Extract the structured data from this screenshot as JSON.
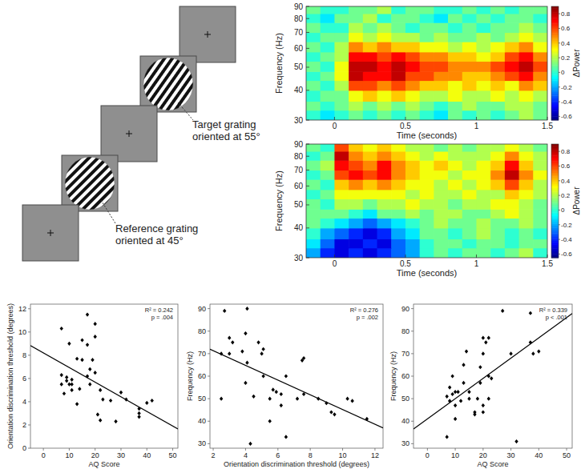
{
  "stimulus": {
    "target_label": "Target grating oriented at 55°",
    "reference_label": "Reference grating oriented at 45°"
  },
  "chart_data": [
    {
      "type": "heatmap",
      "xlabel": "Time (seconds)",
      "ylabel": "Frequency (Hz)",
      "log": "y",
      "xlim": [
        -0.2,
        1.5
      ],
      "xticks": [
        0,
        0.5,
        1,
        1.5
      ],
      "ylim": [
        30,
        90
      ],
      "yticks": [
        30,
        40,
        50,
        60,
        70,
        80,
        90
      ],
      "x_edges": [
        -0.2,
        -0.1,
        0,
        0.1,
        0.2,
        0.3,
        0.4,
        0.5,
        0.6,
        0.7,
        0.8,
        0.9,
        1,
        1.1,
        1.2,
        1.3,
        1.4,
        1.5
      ],
      "y_edges": [
        30,
        33,
        36,
        40,
        44,
        48,
        53,
        58,
        64,
        70,
        77,
        84,
        90
      ],
      "cells": [
        [
          0.0,
          -0.1,
          0.0,
          0.1,
          0.0,
          0.1,
          0.0,
          0.1,
          0.0,
          -0.1,
          0.1,
          0.0,
          0.1,
          0.0,
          0.1,
          0.2,
          0.1
        ],
        [
          0.1,
          0.0,
          0.1,
          0.2,
          0.1,
          0.2,
          0.1,
          0.2,
          0.1,
          0.0,
          0.1,
          0.2,
          0.1,
          0.1,
          0.2,
          0.2,
          0.1
        ],
        [
          0.0,
          0.1,
          0.1,
          0.3,
          0.4,
          0.3,
          0.4,
          0.3,
          0.2,
          0.2,
          0.3,
          0.2,
          0.2,
          0.3,
          0.2,
          0.3,
          0.2
        ],
        [
          0.1,
          0.0,
          0.2,
          0.6,
          0.6,
          0.5,
          0.6,
          0.5,
          0.4,
          0.4,
          0.3,
          0.4,
          0.3,
          0.4,
          0.3,
          0.5,
          0.4
        ],
        [
          0.0,
          0.1,
          0.3,
          0.8,
          0.7,
          0.7,
          0.8,
          0.6,
          0.6,
          0.5,
          0.5,
          0.4,
          0.4,
          0.5,
          0.6,
          0.7,
          0.5
        ],
        [
          0.1,
          0.0,
          0.3,
          0.8,
          0.8,
          0.7,
          0.8,
          0.7,
          0.6,
          0.6,
          0.5,
          0.5,
          0.5,
          0.6,
          0.7,
          0.8,
          0.6
        ],
        [
          0.0,
          0.1,
          0.2,
          0.7,
          0.7,
          0.6,
          0.7,
          0.6,
          0.5,
          0.5,
          0.4,
          0.4,
          0.3,
          0.4,
          0.6,
          0.7,
          0.5
        ],
        [
          0.1,
          0.0,
          0.2,
          0.5,
          0.4,
          0.5,
          0.4,
          0.4,
          0.3,
          0.3,
          0.2,
          0.3,
          0.2,
          0.3,
          0.4,
          0.5,
          0.3
        ],
        [
          0.0,
          0.1,
          0.1,
          0.3,
          0.2,
          0.3,
          0.2,
          0.2,
          0.1,
          0.2,
          0.1,
          0.1,
          0.2,
          0.1,
          0.2,
          0.3,
          0.2
        ],
        [
          0.1,
          0.0,
          0.0,
          0.2,
          0.1,
          0.2,
          0.1,
          0.0,
          0.1,
          0.1,
          0.0,
          0.1,
          0.0,
          0.1,
          0.1,
          0.2,
          0.1
        ],
        [
          0.0,
          -0.1,
          0.1,
          0.1,
          0.2,
          0.0,
          0.1,
          0.1,
          0.0,
          -0.1,
          0.1,
          0.0,
          0.1,
          0.0,
          0.1,
          0.1,
          0.0
        ],
        [
          0.1,
          0.0,
          0.0,
          0.1,
          0.1,
          0.2,
          0.0,
          0.1,
          0.1,
          0.0,
          0.0,
          0.1,
          0.0,
          0.1,
          0.0,
          0.1,
          0.1
        ]
      ],
      "colorbar": {
        "label": "ΔPower",
        "range": [
          -0.65,
          0.9
        ],
        "ticks": [
          -0.6,
          -0.4,
          -0.2,
          0,
          0.2,
          0.4,
          0.6,
          0.8
        ]
      }
    },
    {
      "type": "heatmap",
      "xlabel": "Time (seconds)",
      "ylabel": "Frequency (Hz)",
      "log": "y",
      "xlim": [
        -0.2,
        1.5
      ],
      "xticks": [
        0,
        0.5,
        1,
        1.5
      ],
      "ylim": [
        30,
        90
      ],
      "yticks": [
        30,
        40,
        50,
        60,
        70,
        80,
        90
      ],
      "x_edges": [
        -0.2,
        -0.1,
        0,
        0.1,
        0.2,
        0.3,
        0.4,
        0.5,
        0.6,
        0.7,
        0.8,
        0.9,
        1,
        1.1,
        1.2,
        1.3,
        1.4,
        1.5
      ],
      "y_edges": [
        30,
        33,
        36,
        40,
        44,
        48,
        53,
        58,
        64,
        70,
        77,
        84,
        90
      ],
      "cells": [
        [
          -0.2,
          -0.4,
          -0.5,
          -0.4,
          -0.5,
          -0.4,
          -0.3,
          -0.2,
          0.0,
          0.1,
          0.0,
          0.1,
          0.1,
          0.0,
          0.1,
          0.2,
          0.0
        ],
        [
          -0.1,
          -0.3,
          -0.5,
          -0.5,
          -0.4,
          -0.5,
          -0.3,
          -0.2,
          0.0,
          0.1,
          0.1,
          0.0,
          0.1,
          0.1,
          0.0,
          0.1,
          0.1
        ],
        [
          0.0,
          -0.2,
          -0.3,
          -0.4,
          -0.5,
          -0.4,
          -0.2,
          -0.1,
          0.1,
          0.1,
          0.0,
          0.1,
          0.2,
          0.1,
          0.0,
          0.1,
          0.0
        ],
        [
          0.1,
          0.0,
          -0.1,
          -0.2,
          -0.3,
          -0.2,
          -0.1,
          0.0,
          0.1,
          0.2,
          0.1,
          0.1,
          0.2,
          0.1,
          0.1,
          0.2,
          0.1
        ],
        [
          0.1,
          0.1,
          0.1,
          0.0,
          -0.1,
          0.1,
          0.1,
          0.2,
          0.1,
          0.2,
          0.2,
          0.1,
          0.1,
          0.2,
          0.3,
          0.2,
          0.1
        ],
        [
          0.1,
          0.0,
          0.2,
          0.2,
          0.1,
          0.2,
          0.2,
          0.3,
          0.2,
          0.2,
          0.1,
          0.2,
          0.2,
          0.3,
          0.3,
          0.2,
          0.1
        ],
        [
          0.0,
          0.1,
          0.3,
          0.3,
          0.3,
          0.3,
          0.3,
          0.2,
          0.3,
          0.2,
          0.2,
          0.3,
          0.2,
          0.2,
          0.4,
          0.3,
          0.2
        ],
        [
          0.1,
          0.0,
          0.4,
          0.5,
          0.4,
          0.5,
          0.4,
          0.3,
          0.3,
          0.2,
          0.3,
          0.2,
          0.3,
          0.4,
          0.6,
          0.4,
          0.2
        ],
        [
          0.0,
          0.1,
          0.6,
          0.7,
          0.6,
          0.7,
          0.5,
          0.4,
          0.3,
          0.3,
          0.2,
          0.3,
          0.3,
          0.5,
          0.8,
          0.5,
          0.3
        ],
        [
          0.1,
          0.2,
          0.7,
          0.6,
          0.5,
          0.7,
          0.5,
          0.4,
          0.3,
          0.4,
          0.3,
          0.2,
          0.3,
          0.4,
          0.7,
          0.4,
          0.2
        ],
        [
          0.0,
          0.1,
          0.8,
          0.5,
          0.4,
          0.5,
          0.4,
          0.3,
          0.2,
          0.3,
          0.2,
          0.2,
          0.2,
          0.3,
          0.5,
          0.3,
          0.2
        ],
        [
          0.1,
          0.0,
          0.6,
          0.4,
          0.3,
          0.4,
          0.3,
          0.2,
          0.2,
          0.1,
          0.2,
          0.1,
          0.2,
          0.2,
          0.3,
          0.2,
          0.1
        ]
      ],
      "colorbar": {
        "label": "ΔPower",
        "range": [
          -0.65,
          0.9
        ],
        "ticks": [
          -0.6,
          -0.4,
          -0.2,
          0,
          0.2,
          0.4,
          0.6,
          0.8
        ]
      }
    },
    {
      "type": "scatter",
      "xlabel": "AQ Score",
      "ylabel": "Orientation discrimination threshold (degrees)",
      "marker": "diamond",
      "color": "#000000",
      "xlim": [
        -5,
        52
      ],
      "xticks": [
        0,
        10,
        20,
        30,
        40,
        50
      ],
      "ylim": [
        0,
        12.4
      ],
      "yticks": [
        0,
        2,
        4,
        6,
        8,
        10,
        12
      ],
      "x": [
        7,
        7,
        7,
        8,
        9,
        9,
        10,
        10,
        11,
        11,
        11,
        13,
        13,
        14,
        15,
        15,
        17,
        17,
        17,
        18,
        18,
        19,
        20,
        20,
        20,
        21,
        22,
        22,
        23,
        26,
        28,
        30,
        32,
        37,
        37,
        37,
        40,
        42
      ],
      "values": [
        10.3,
        6.3,
        5.5,
        4.7,
        5.8,
        6.1,
        9.0,
        5.5,
        5.5,
        5.0,
        5.9,
        7.7,
        3.8,
        5.1,
        9.3,
        7.6,
        11.5,
        8.9,
        6.2,
        5.5,
        6.8,
        7.6,
        10.7,
        9.6,
        6.5,
        2.9,
        5.0,
        2.4,
        4.2,
        4.1,
        2.3,
        4.8,
        4.2,
        3.4,
        3.0,
        2.7,
        3.9,
        4.1
      ],
      "fit_line": {
        "x": [
          -5,
          52
        ],
        "values": [
          8.83,
          1.65
        ]
      },
      "annotations": [
        "R² = 0.242",
        "p = .004"
      ]
    },
    {
      "type": "scatter",
      "xlabel": "Orientation discrimination threshold (degrees)",
      "ylabel": "Frequency (Hz)",
      "marker": "diamond",
      "color": "#000000",
      "xlim": [
        1.8,
        12.5
      ],
      "xticks": [
        2,
        4,
        6,
        8,
        10,
        12
      ],
      "ylim": [
        28,
        92
      ],
      "yticks": [
        30,
        40,
        50,
        60,
        70,
        80,
        90
      ],
      "x": [
        2.5,
        2.5,
        2.7,
        3.0,
        3.0,
        3.2,
        3.8,
        4.0,
        4.0,
        4.1,
        4.1,
        4.3,
        4.5,
        4.8,
        5.0,
        5.1,
        5.1,
        5.5,
        5.5,
        5.7,
        5.9,
        6.2,
        6.2,
        6.5,
        6.5,
        7.2,
        7.5,
        7.6,
        7.6,
        8.5,
        9.0,
        9.3,
        9.5,
        10.3,
        10.6,
        11.5
      ],
      "values": [
        50,
        70,
        89,
        77,
        70,
        75,
        71,
        79,
        57,
        90,
        66,
        30,
        51,
        75,
        70,
        72,
        60,
        50,
        40,
        54,
        53,
        47,
        52,
        33,
        60,
        50,
        67,
        68,
        52,
        50,
        48,
        44,
        43,
        50,
        49,
        41
      ],
      "fit_line": {
        "x": [
          1.8,
          12.5
        ],
        "values": [
          72,
          37
        ]
      },
      "annotations": [
        "R² = 0.276",
        "p = .002"
      ]
    },
    {
      "type": "scatter",
      "xlabel": "AQ Score",
      "ylabel": "Frequency (Hz)",
      "marker": "diamond",
      "color": "#000000",
      "xlim": [
        -5,
        52
      ],
      "xticks": [
        0,
        10,
        20,
        30,
        40,
        50
      ],
      "ylim": [
        28,
        92
      ],
      "yticks": [
        30,
        40,
        50,
        60,
        70,
        80,
        90
      ],
      "x": [
        7,
        7,
        8,
        8,
        9,
        9,
        10,
        10,
        10,
        11,
        12,
        13,
        13,
        14,
        15,
        15,
        17,
        17,
        18,
        19,
        19,
        20,
        20,
        20,
        20,
        21,
        22,
        22,
        22,
        23,
        27,
        30,
        32,
        37,
        37,
        38,
        40
      ],
      "values": [
        33,
        51,
        49,
        55,
        52,
        60,
        47,
        41,
        53,
        53,
        49,
        65,
        57,
        71,
        50,
        53,
        43,
        44,
        50,
        57,
        64,
        44,
        47,
        70,
        77,
        75,
        50,
        77,
        60,
        59,
        89,
        70,
        31,
        88,
        75,
        70,
        71
      ],
      "fit_line": {
        "x": [
          -5,
          52
        ],
        "values": [
          36.5,
          87.8
        ]
      },
      "annotations": [
        "R² = 0.339",
        "p < .001"
      ]
    }
  ]
}
